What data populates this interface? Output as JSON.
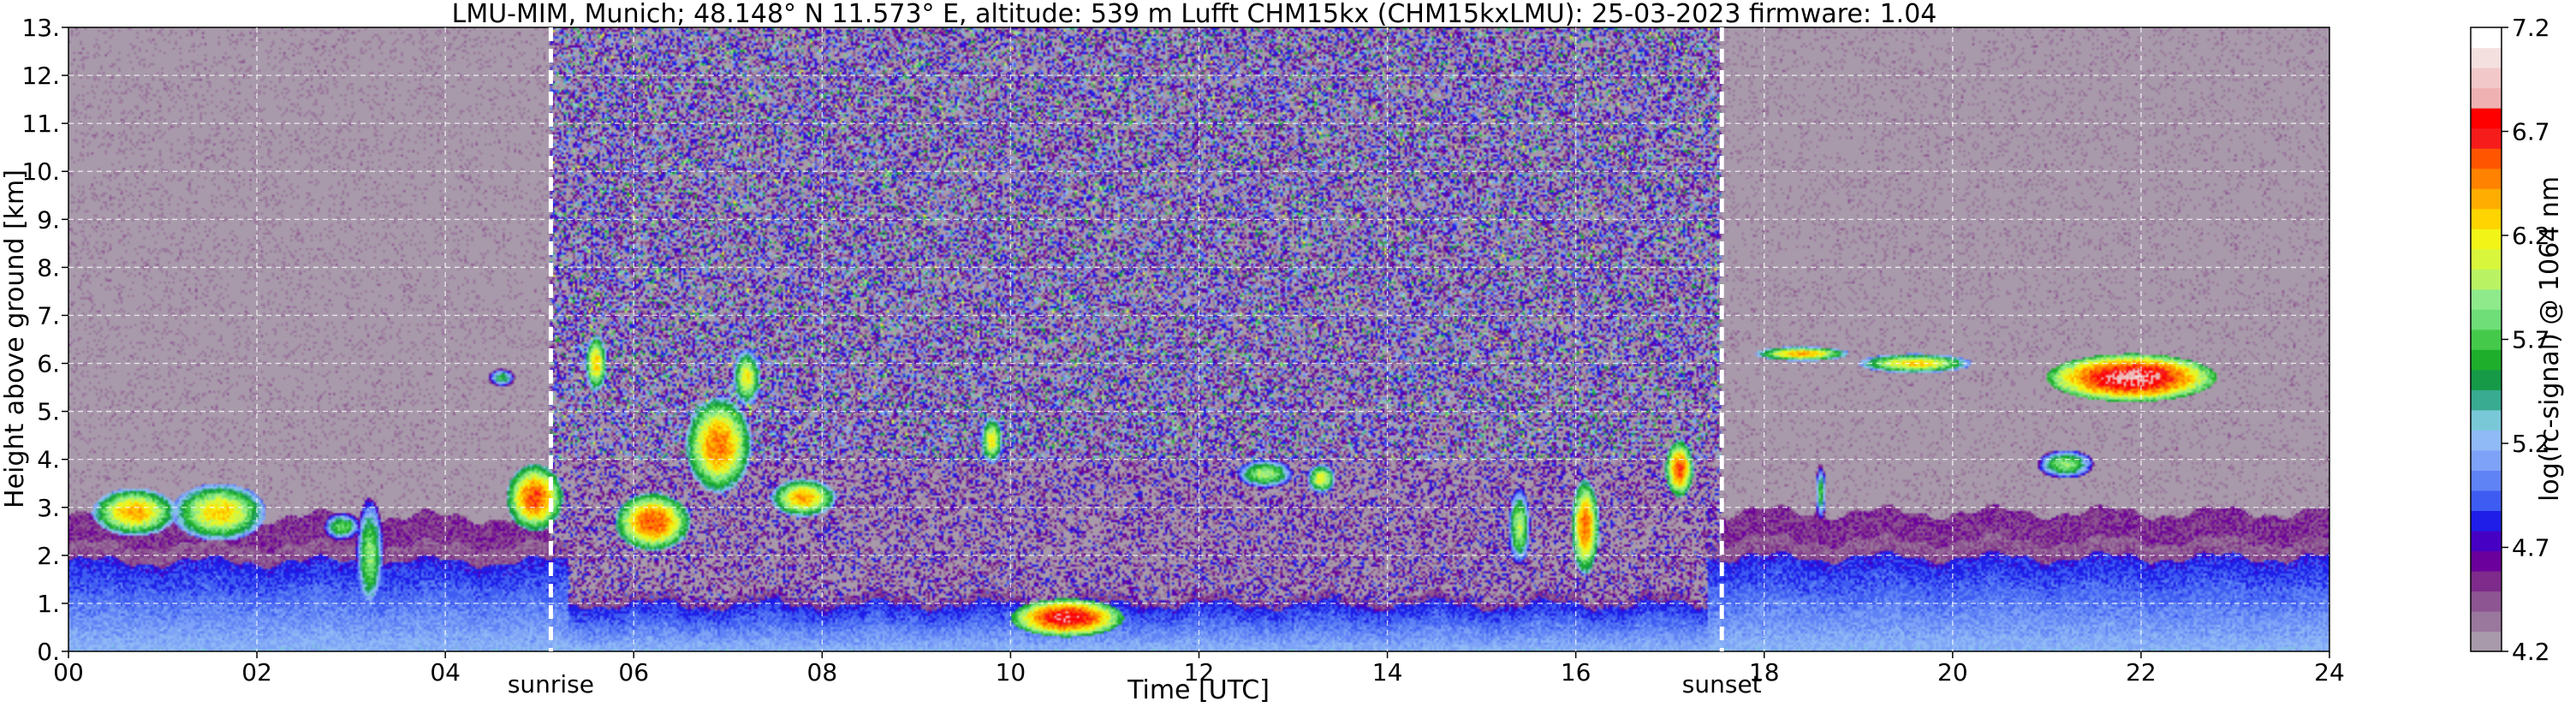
{
  "chart_data": {
    "type": "heatmap",
    "title": "LMU-MIM, Munich; 48.148° N 11.573° E, altitude: 539 m    Lufft CHM15kx (CHM15kxLMU): 25-03-2023    firmware: 1.04",
    "xlabel": "Time [UTC]",
    "ylabel": "Height above ground [km]",
    "xlim": [
      0,
      24
    ],
    "ylim": [
      0,
      13
    ],
    "x_ticks": [
      0,
      2,
      4,
      6,
      8,
      10,
      12,
      14,
      16,
      18,
      20,
      22,
      24
    ],
    "x_tick_labels": [
      "00",
      "02",
      "04",
      "06",
      "08",
      "10",
      "12",
      "14",
      "16",
      "18",
      "20",
      "22",
      "24"
    ],
    "y_ticks": [
      0,
      1,
      2,
      3,
      4,
      5,
      6,
      7,
      8,
      9,
      10,
      11,
      12,
      13
    ],
    "y_tick_labels": [
      "0.",
      "1.",
      "2.",
      "3.",
      "4.",
      "5.",
      "6.",
      "7.",
      "8.",
      "9.",
      "10.",
      "11.",
      "12.",
      "13."
    ],
    "grid": true,
    "markers": [
      {
        "label": "sunrise",
        "x": 5.12
      },
      {
        "label": "sunset",
        "x": 17.55
      }
    ],
    "colorbar": {
      "label": "log(rc-signal) @ 1064 nm",
      "min": 4.2,
      "max": 7.2,
      "ticks": [
        4.2,
        4.7,
        5.2,
        5.7,
        6.2,
        6.7,
        7.2
      ],
      "tick_labels": [
        "4.2",
        "4.7",
        "5.2",
        "5.7",
        "6.2",
        "6.7",
        "7.2"
      ],
      "colors": [
        "#a89aab",
        "#9a779c",
        "#8d5591",
        "#7e2b8c",
        "#6b009c",
        "#4600c4",
        "#1e1ee8",
        "#3f5cf2",
        "#5f83f5",
        "#7ea2f7",
        "#8fbaf6",
        "#78c8d8",
        "#38ab90",
        "#169a48",
        "#1fae2c",
        "#44c94a",
        "#6fdd78",
        "#8fea8c",
        "#b9f364",
        "#d8f73c",
        "#f2f418",
        "#ffd400",
        "#ffad00",
        "#ff8200",
        "#ff5500",
        "#f71c1c",
        "#ff0000",
        "#efb1b1",
        "#f2c8c8",
        "#f5e0e0",
        "#ffffff"
      ]
    },
    "features": {
      "boundary_layer": [
        {
          "t0": 0.0,
          "t1": 5.3,
          "top": 2.2
        },
        {
          "t0": 5.3,
          "t1": 17.4,
          "top": 1.15
        },
        {
          "t0": 17.4,
          "t1": 24.0,
          "top": 2.3
        }
      ],
      "clouds": [
        {
          "t": 0.7,
          "h": 2.9,
          "w": 0.45,
          "d": 0.5,
          "v": 6.4
        },
        {
          "t": 1.6,
          "h": 2.9,
          "w": 0.5,
          "d": 0.6,
          "v": 6.3
        },
        {
          "t": 2.9,
          "h": 2.6,
          "w": 0.2,
          "d": 0.3,
          "v": 5.8
        },
        {
          "t": 3.2,
          "h": 2.0,
          "w": 0.15,
          "d": 1.2,
          "v": 5.9
        },
        {
          "t": 4.6,
          "h": 5.7,
          "w": 0.15,
          "d": 0.2,
          "v": 5.6
        },
        {
          "t": 4.95,
          "h": 3.2,
          "w": 0.3,
          "d": 0.7,
          "v": 6.6
        },
        {
          "t": 5.6,
          "h": 6.0,
          "w": 0.12,
          "d": 0.6,
          "v": 6.3
        },
        {
          "t": 6.2,
          "h": 2.7,
          "w": 0.4,
          "d": 0.6,
          "v": 6.6
        },
        {
          "t": 6.9,
          "h": 4.3,
          "w": 0.35,
          "d": 1.0,
          "v": 6.5
        },
        {
          "t": 7.2,
          "h": 5.7,
          "w": 0.15,
          "d": 0.6,
          "v": 6.2
        },
        {
          "t": 7.8,
          "h": 3.2,
          "w": 0.35,
          "d": 0.4,
          "v": 6.4
        },
        {
          "t": 9.8,
          "h": 4.4,
          "w": 0.12,
          "d": 0.5,
          "v": 6.2
        },
        {
          "t": 10.6,
          "h": 0.7,
          "w": 0.6,
          "d": 0.4,
          "v": 6.8
        },
        {
          "t": 12.7,
          "h": 3.7,
          "w": 0.3,
          "d": 0.3,
          "v": 6.0
        },
        {
          "t": 13.3,
          "h": 3.6,
          "w": 0.15,
          "d": 0.3,
          "v": 6.2
        },
        {
          "t": 15.4,
          "h": 2.6,
          "w": 0.12,
          "d": 0.8,
          "v": 6.0
        },
        {
          "t": 16.1,
          "h": 2.6,
          "w": 0.15,
          "d": 1.0,
          "v": 6.5
        },
        {
          "t": 17.1,
          "h": 3.8,
          "w": 0.15,
          "d": 0.6,
          "v": 6.6
        },
        {
          "t": 18.4,
          "h": 6.2,
          "w": 0.5,
          "d": 0.15,
          "v": 6.4
        },
        {
          "t": 19.6,
          "h": 6.0,
          "w": 0.6,
          "d": 0.2,
          "v": 6.3
        },
        {
          "t": 21.9,
          "h": 5.7,
          "w": 0.9,
          "d": 0.5,
          "v": 6.9
        },
        {
          "t": 21.2,
          "h": 3.9,
          "w": 0.3,
          "d": 0.3,
          "v": 5.9
        },
        {
          "t": 18.6,
          "h": 3.3,
          "w": 0.06,
          "d": 0.6,
          "v": 5.7
        }
      ]
    }
  }
}
